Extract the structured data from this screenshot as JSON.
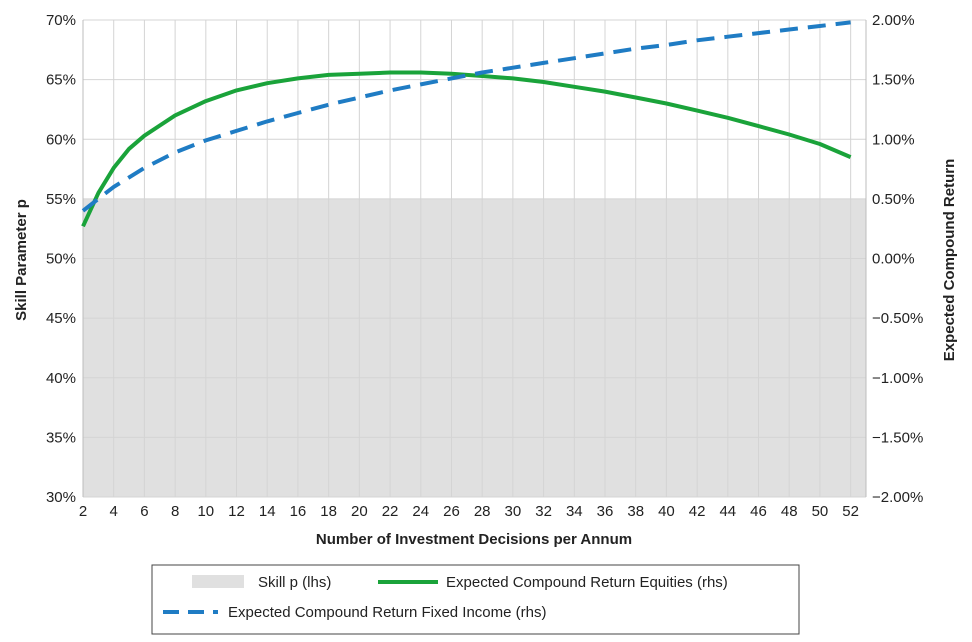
{
  "chart_data": {
    "type": "line",
    "xlabel": "Number of Investment Decisions per Annum",
    "ylabel_left": "Skill Parameter p",
    "ylabel_right": "Expected Compound Return",
    "x_ticks": [
      2,
      4,
      6,
      8,
      10,
      12,
      14,
      16,
      18,
      20,
      22,
      24,
      26,
      28,
      30,
      32,
      34,
      36,
      38,
      40,
      42,
      44,
      46,
      48,
      50,
      52
    ],
    "xlim": [
      2,
      53
    ],
    "ylim_left": [
      30,
      70
    ],
    "ylim_right": [
      -2.0,
      2.0
    ],
    "y_left_ticks": [
      "30%",
      "35%",
      "40%",
      "45%",
      "50%",
      "55%",
      "60%",
      "65%",
      "70%"
    ],
    "y_right_ticks": [
      "-2.00%",
      "-1.50%",
      "-1.00%",
      "-0.50%",
      "0.00%",
      "0.50%",
      "1.00%",
      "1.50%",
      "2.00%"
    ],
    "grid": true,
    "legend_position": "bottom",
    "series": [
      {
        "name": "Skill p (lhs)",
        "axis": "left",
        "style": "area",
        "color": "#e0e0e0",
        "x": [
          2,
          53
        ],
        "values": [
          55,
          55
        ]
      },
      {
        "name": "Expected Compound Return Equities (rhs)",
        "axis": "right",
        "style": "solid",
        "color": "#1aa33a",
        "x": [
          2,
          3,
          4,
          5,
          6,
          8,
          10,
          12,
          14,
          16,
          18,
          20,
          22,
          24,
          26,
          28,
          30,
          32,
          34,
          36,
          38,
          40,
          42,
          44,
          46,
          48,
          50,
          52
        ],
        "values": [
          0.27,
          0.55,
          0.76,
          0.92,
          1.03,
          1.2,
          1.32,
          1.41,
          1.47,
          1.51,
          1.54,
          1.55,
          1.56,
          1.56,
          1.55,
          1.53,
          1.51,
          1.48,
          1.44,
          1.4,
          1.35,
          1.3,
          1.24,
          1.18,
          1.11,
          1.04,
          0.96,
          0.85
        ]
      },
      {
        "name": "Expected Compound Return Fixed Income (rhs)",
        "axis": "right",
        "style": "dashed",
        "color": "#1f7cc4",
        "x": [
          2,
          4,
          6,
          8,
          10,
          12,
          14,
          16,
          18,
          20,
          22,
          24,
          26,
          28,
          30,
          32,
          34,
          36,
          38,
          40,
          42,
          44,
          46,
          48,
          50,
          52
        ],
        "values": [
          0.4,
          0.6,
          0.76,
          0.89,
          0.99,
          1.07,
          1.15,
          1.22,
          1.29,
          1.35,
          1.41,
          1.46,
          1.51,
          1.56,
          1.6,
          1.64,
          1.68,
          1.72,
          1.76,
          1.79,
          1.83,
          1.86,
          1.89,
          1.92,
          1.95,
          1.98
        ]
      }
    ]
  }
}
